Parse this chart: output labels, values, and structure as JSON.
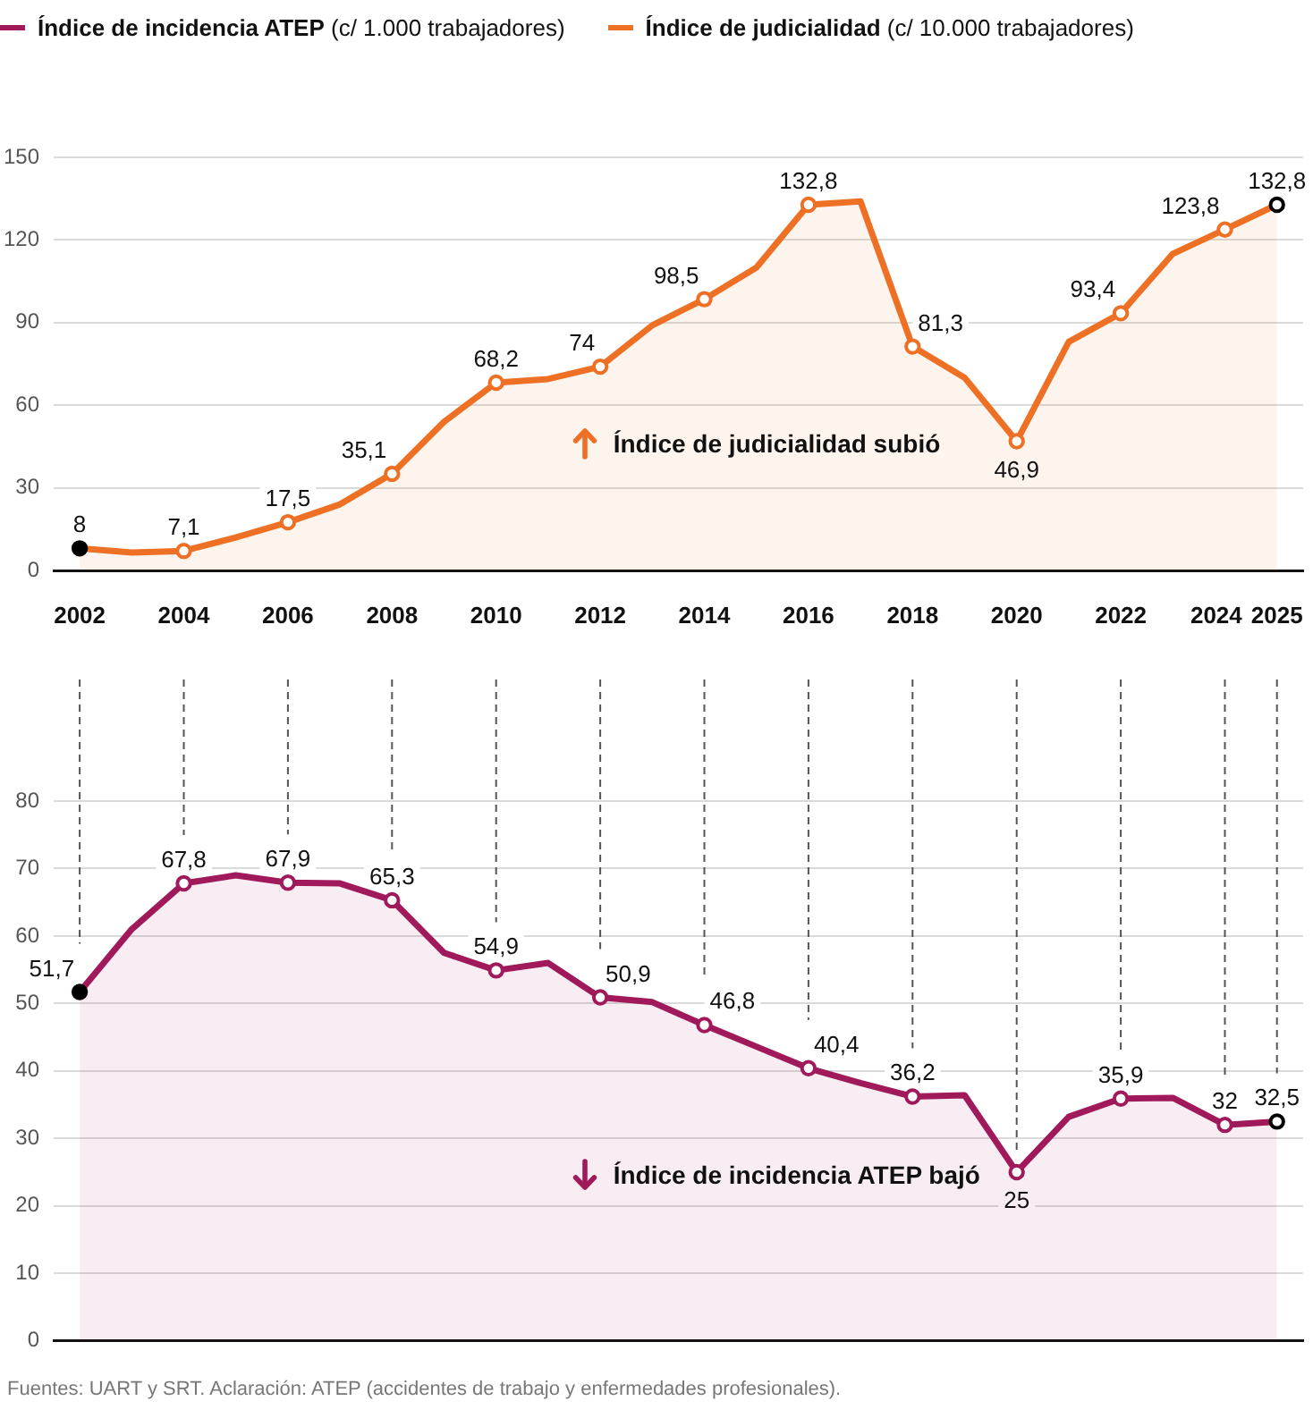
{
  "chart_data": [
    {
      "type": "area",
      "x": [
        2002,
        2003,
        2004,
        2005,
        2006,
        2007,
        2008,
        2009,
        2010,
        2011,
        2012,
        2013,
        2014,
        2015,
        2016,
        2017,
        2018,
        2019,
        2020,
        2021,
        2022,
        2023,
        2024,
        2025
      ],
      "series": [
        {
          "name": "Índice de judicialidad (c/ 10.000 trabajadores)",
          "color": "#ee7025",
          "values": [
            8,
            6.5,
            7.1,
            12,
            17.5,
            24,
            35.1,
            54,
            68.2,
            69.5,
            74,
            89,
            98.5,
            110,
            132.8,
            134,
            81.3,
            70,
            46.9,
            83,
            93.4,
            115,
            123.8,
            132.8
          ],
          "value_labels": [
            "8",
            null,
            "7,1",
            null,
            "17,5",
            null,
            "35,1",
            null,
            "68,2",
            null,
            "74",
            null,
            "98,5",
            null,
            "132,8",
            null,
            "81,3",
            null,
            "46,9",
            null,
            "93,4",
            null,
            "123,8",
            "132,8"
          ]
        }
      ],
      "xlim": [
        2001.5,
        2025.5
      ],
      "xticks": [
        2002,
        2004,
        2006,
        2008,
        2010,
        2012,
        2014,
        2016,
        2018,
        2020,
        2022,
        2024,
        2025
      ],
      "ylim": [
        0,
        150
      ],
      "yticks": [
        0,
        30,
        60,
        90,
        120,
        150
      ],
      "grid": "y",
      "legend": "top",
      "marker": "circle",
      "annotations": [
        "Índice de judicialidad subió"
      ]
    },
    {
      "type": "area",
      "x": [
        2002,
        2003,
        2004,
        2005,
        2006,
        2007,
        2008,
        2009,
        2010,
        2011,
        2012,
        2013,
        2014,
        2015,
        2016,
        2017,
        2018,
        2019,
        2020,
        2021,
        2022,
        2023,
        2024,
        2025
      ],
      "series": [
        {
          "name": "Índice de incidencia ATEP (c/ 1.000 trabajadores)",
          "color": "#a0195a",
          "values": [
            51.7,
            61,
            67.8,
            69,
            67.9,
            67.8,
            65.3,
            57.5,
            54.9,
            56,
            50.9,
            50.2,
            46.8,
            43.6,
            40.4,
            38.2,
            36.2,
            36.4,
            25,
            33.2,
            35.9,
            36,
            32,
            32.5
          ],
          "value_labels": [
            "51,7",
            null,
            "67,8",
            null,
            "67,9",
            null,
            "65,3",
            null,
            "54,9",
            null,
            "50,9",
            null,
            "46,8",
            null,
            "40,4",
            null,
            "36,2",
            null,
            "25",
            null,
            "35,9",
            null,
            "32",
            "32,5"
          ]
        }
      ],
      "xlim": [
        2001.5,
        2025.5
      ],
      "xticks": [
        2002,
        2004,
        2006,
        2008,
        2010,
        2012,
        2014,
        2016,
        2018,
        2020,
        2022,
        2024,
        2025
      ],
      "ylim": [
        0,
        80
      ],
      "yticks": [
        0,
        10,
        20,
        30,
        40,
        50,
        60,
        70,
        80
      ],
      "grid": true,
      "legend": "top",
      "marker": "circle",
      "tick_labels": "y",
      "annotations": [
        "Índice de incidencia ATEP bajó",
        "Fuentes: UART y SRT. Aclaración: ATEP (accidentes de trabajo y enfermedades profesionales)."
      ]
    }
  ]
}
